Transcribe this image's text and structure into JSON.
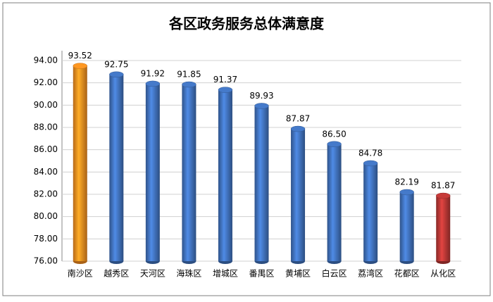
{
  "chart_data": {
    "type": "bar",
    "title": "各区政务服务总体满意度",
    "categories": [
      "南沙区",
      "越秀区",
      "天河区",
      "海珠区",
      "增城区",
      "番禺区",
      "黄埔区",
      "白云区",
      "荔湾区",
      "花都区",
      "从化区"
    ],
    "values": [
      93.52,
      92.75,
      91.92,
      91.85,
      91.37,
      89.93,
      87.87,
      86.5,
      84.78,
      82.19,
      81.87
    ],
    "value_labels": [
      "93.52",
      "92.75",
      "91.92",
      "91.85",
      "91.37",
      "89.93",
      "87.87",
      "86.50",
      "84.78",
      "82.19",
      "81.87"
    ],
    "colors": [
      "#f28a1f",
      "#3f6fb8",
      "#3f6fb8",
      "#3f6fb8",
      "#3f6fb8",
      "#3f6fb8",
      "#3f6fb8",
      "#3f6fb8",
      "#3f6fb8",
      "#3f6fb8",
      "#b53634"
    ],
    "ylim": [
      76,
      94
    ],
    "yticks": [
      {
        "value": 76,
        "label": "76.00"
      },
      {
        "value": 78,
        "label": "78.00"
      },
      {
        "value": 80,
        "label": "80.00"
      },
      {
        "value": 82,
        "label": "82.00"
      },
      {
        "value": 84,
        "label": "84.00"
      },
      {
        "value": 86,
        "label": "86.00"
      },
      {
        "value": 88,
        "label": "88.00"
      },
      {
        "value": 90,
        "label": "90.00"
      },
      {
        "value": 92,
        "label": "92.00"
      },
      {
        "value": 94,
        "label": "94.00"
      }
    ],
    "grid": true
  }
}
